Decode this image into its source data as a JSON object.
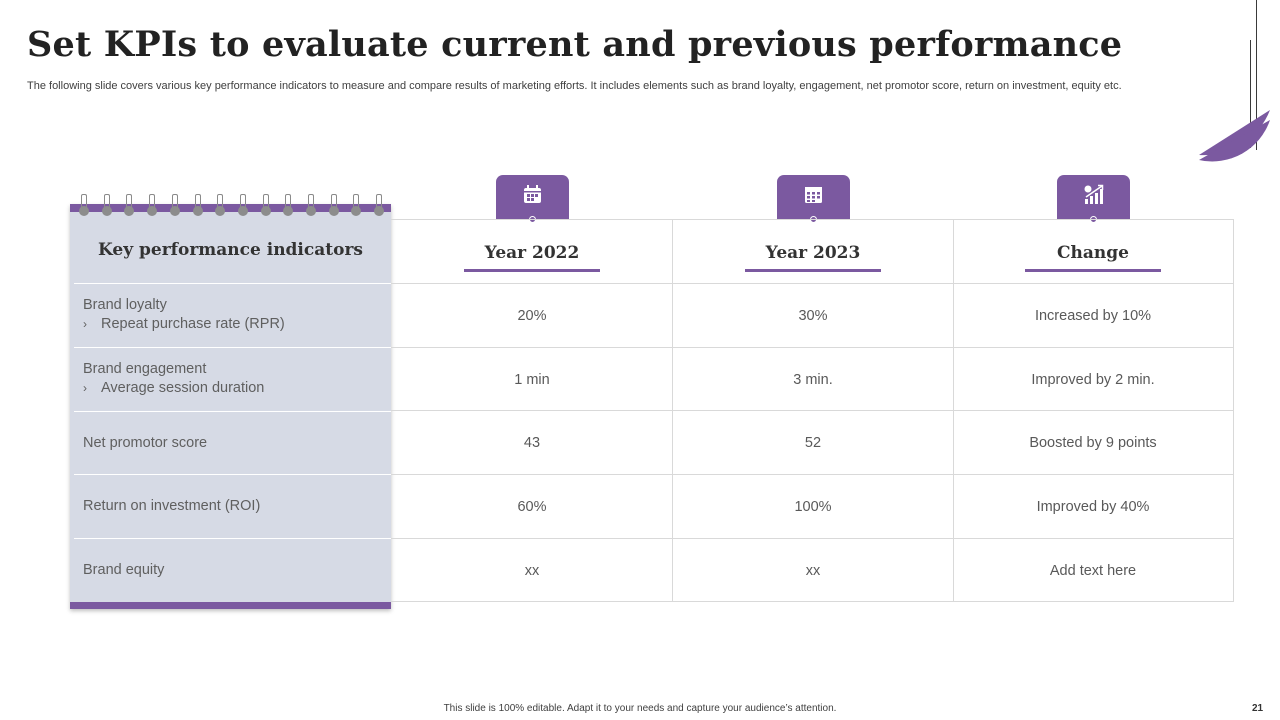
{
  "slide": {
    "title": "Set KPIs to evaluate current and previous performance",
    "subtitle": "The following slide covers various key performance indicators to measure and compare results of marketing efforts. It includes elements such as brand loyalty, engagement, net promotor score, return on investment, equity etc.",
    "footer": "This slide is 100% editable.  Adapt it to your needs and capture your audience’s attention.",
    "page_number": "21"
  },
  "colors": {
    "accent": "#7b59a0",
    "panel": "#d6dae5"
  },
  "kpi_panel": {
    "heading": "Key performance indicators",
    "rows": [
      {
        "label": "Brand loyalty",
        "sub": "Repeat purchase rate (RPR)",
        "bullet": "›"
      },
      {
        "label": "Brand engagement",
        "sub": "Average  session duration",
        "bullet": "›"
      },
      {
        "label": "Net promotor score"
      },
      {
        "label": "Return on investment (ROI)"
      },
      {
        "label": "Brand equity"
      }
    ]
  },
  "table": {
    "columns": [
      {
        "header": "Year 2022",
        "icon": "calendar-icon"
      },
      {
        "header": "Year 2023",
        "icon": "calendar-grid-icon"
      },
      {
        "header": "Change",
        "icon": "growth-chart-icon"
      }
    ],
    "rows": [
      [
        "20%",
        "30%",
        "Increased by 10%"
      ],
      [
        "1 min",
        "3 min.",
        "Improved by 2 min."
      ],
      [
        "43",
        "52",
        "Boosted by 9 points"
      ],
      [
        "60%",
        "100%",
        "Improved by 40%"
      ],
      [
        "xx",
        "xx",
        "Add text here"
      ]
    ]
  }
}
